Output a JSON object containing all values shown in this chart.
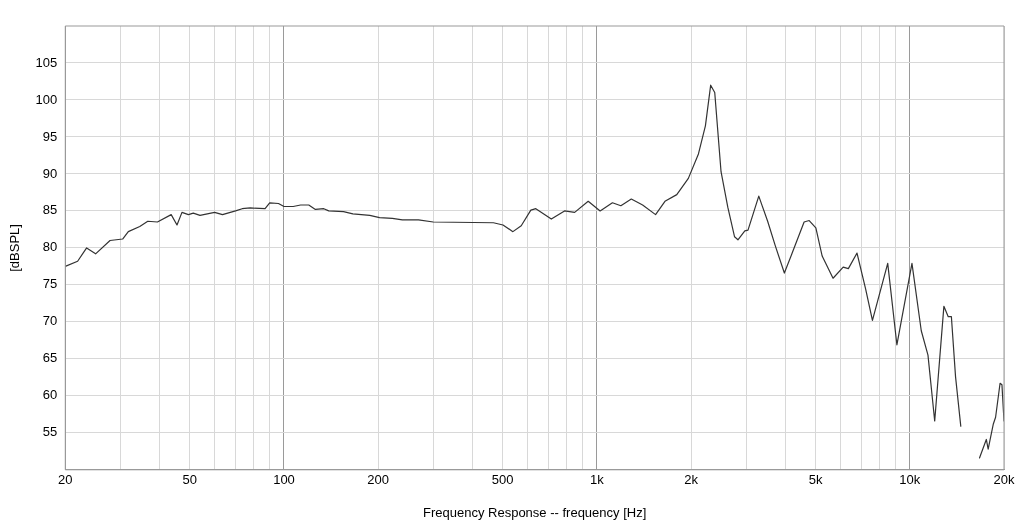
{
  "chart_data": {
    "type": "line",
    "xlabel": "Frequency Response -- frequency [Hz]",
    "ylabel": "[dBSPL]",
    "log": "x",
    "grid": true,
    "legend": false,
    "marker": "none",
    "line_style": "solid",
    "xlim": [
      20,
      20000
    ],
    "ylim": [
      50,
      110
    ],
    "xticks": [
      20,
      {
        "value": 30,
        "label": null
      },
      {
        "value": 40,
        "label": null
      },
      50,
      {
        "value": 60,
        "label": null
      },
      {
        "value": 70,
        "label": null
      },
      {
        "value": 80,
        "label": null
      },
      {
        "value": 90,
        "label": null
      },
      100,
      200,
      {
        "value": 300,
        "label": null
      },
      {
        "value": 400,
        "label": null
      },
      500,
      {
        "value": 600,
        "label": null
      },
      {
        "value": 700,
        "label": null
      },
      {
        "value": 800,
        "label": null
      },
      {
        "value": 900,
        "label": null
      },
      {
        "value": 1000,
        "label": "1k"
      },
      {
        "value": 2000,
        "label": "2k"
      },
      {
        "value": 3000,
        "label": null
      },
      {
        "value": 4000,
        "label": null
      },
      {
        "value": 5000,
        "label": "5k"
      },
      {
        "value": 6000,
        "label": null
      },
      {
        "value": 7000,
        "label": null
      },
      {
        "value": 8000,
        "label": null
      },
      {
        "value": 9000,
        "label": null
      },
      {
        "value": 10000,
        "label": "10k"
      },
      {
        "value": 20000,
        "label": "20k"
      }
    ],
    "yticks": [
      55,
      60,
      65,
      70,
      75,
      80,
      85,
      90,
      95,
      100,
      105
    ],
    "series": [
      {
        "color": "#333333",
        "x": [
          20,
          21.9,
          23.4,
          25,
          27.8,
          30.5,
          31.8,
          34.6,
          36.7,
          39.4,
          43.6,
          45.5,
          47.2,
          49.5,
          51.3,
          53.9,
          60,
          63.6,
          70,
          73.5,
          78,
          87,
          90,
          96,
          100,
          107,
          113,
          120,
          126,
          134,
          139,
          155,
          166,
          188,
          202,
          222,
          239,
          269,
          300,
          467,
          501,
          539,
          573,
          615,
          638,
          715,
          788,
          849,
          938,
          1024,
          1121,
          1193,
          1288,
          1400,
          1540,
          1650,
          1800,
          1960,
          2111,
          2222,
          2310,
          2380,
          2493,
          2620,
          2754,
          2823,
          2970,
          3040,
          3291,
          3513,
          3715,
          3973,
          4208,
          4594,
          4769,
          5009,
          5247,
          5684,
          6125,
          6362,
          6780,
          7220,
          7596,
          8500,
          9093,
          10160,
          10880,
          11430,
          12010,
          12850,
          13270,
          13580,
          14000,
          14550,
          16000,
          16700,
          17560,
          17800,
          18490,
          18800,
          19430,
          19700,
          20000
        ],
        "values": [
          77.5,
          78.2,
          80.0,
          79.2,
          81.0,
          81.2,
          82.2,
          82.9,
          83.6,
          83.5,
          84.5,
          83.1,
          84.8,
          84.5,
          84.7,
          84.4,
          84.8,
          84.5,
          85.0,
          85.3,
          85.4,
          85.3,
          86.1,
          86.0,
          85.6,
          85.6,
          85.8,
          85.8,
          85.2,
          85.3,
          85.0,
          84.9,
          84.6,
          84.4,
          84.1,
          84.0,
          83.8,
          83.8,
          83.5,
          83.4,
          83.1,
          82.2,
          83.0,
          85.1,
          85.3,
          83.9,
          85.0,
          84.8,
          86.3,
          85.0,
          86.1,
          85.7,
          86.6,
          85.8,
          84.5,
          86.3,
          87.2,
          89.4,
          92.7,
          96.5,
          102.0,
          101.0,
          90.3,
          85.5,
          81.5,
          81.1,
          82.3,
          82.4,
          87.0,
          83.6,
          80.3,
          76.6,
          79.3,
          83.5,
          83.7,
          82.7,
          78.9,
          75.9,
          77.4,
          77.2,
          79.3,
          74.5,
          70.2,
          77.9,
          66.9,
          77.9,
          68.8,
          65.5,
          56.6,
          72.1,
          70.7,
          70.7,
          62.6,
          55.9,
          null,
          51.6,
          54.1,
          52.8,
          56.2,
          57.1,
          61.7,
          61.5,
          56.6
        ]
      }
    ]
  }
}
